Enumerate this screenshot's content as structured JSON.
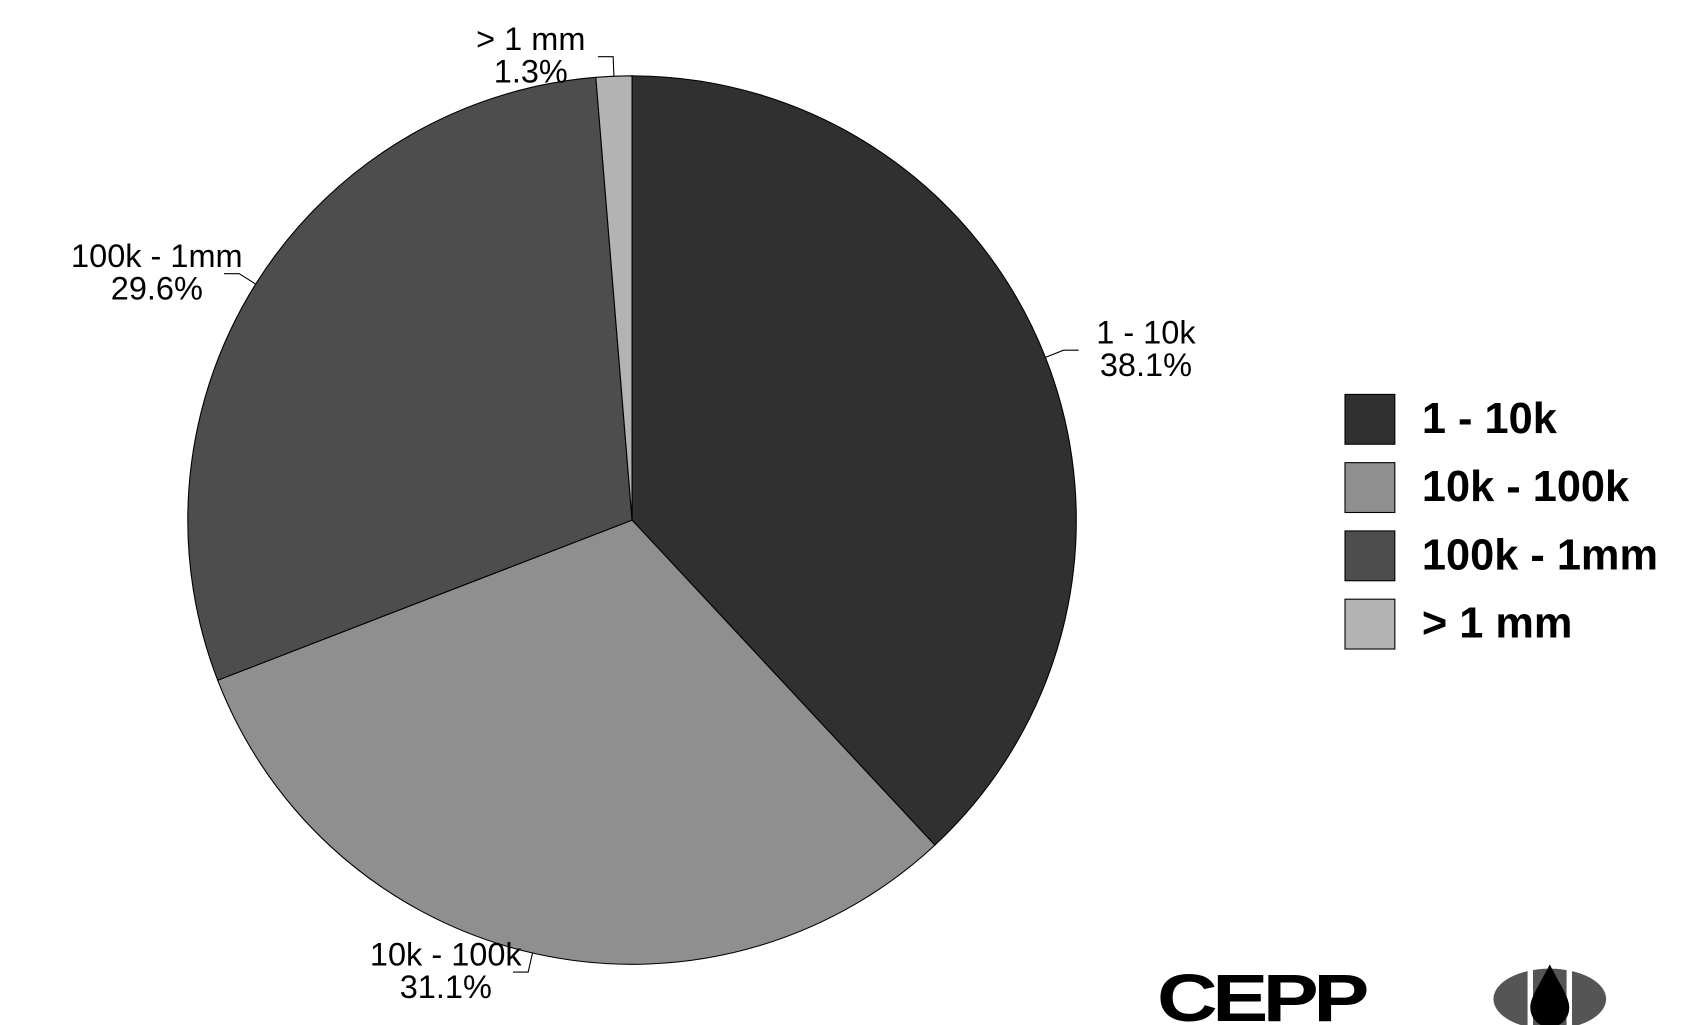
{
  "chart_data": {
    "type": "pie",
    "categories": [
      "1 - 10k",
      "10k - 100k",
      "100k - 1mm",
      "> 1 mm"
    ],
    "values": [
      38.1,
      31.1,
      29.6,
      1.3
    ],
    "value_labels": [
      "38.1%",
      "31.1%",
      "29.6%",
      "1.3%"
    ],
    "colors": [
      "#303030",
      "#8f8f8f",
      "#4d4d4d",
      "#b3b3b3"
    ],
    "legend": "right",
    "logo": "CEPP"
  }
}
